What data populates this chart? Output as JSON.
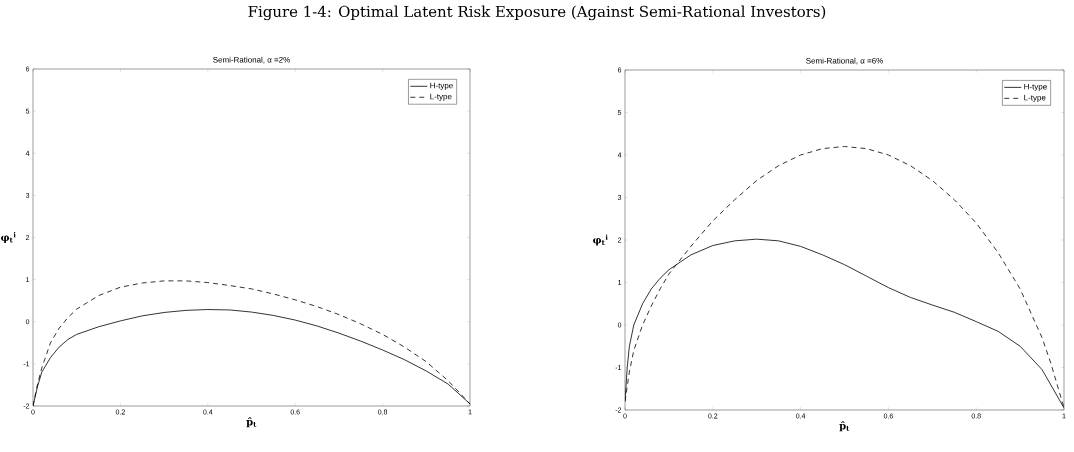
{
  "chart_data": [
    {
      "type": "line",
      "title": "Semi-Rational,  α =2%",
      "xlabel": "p̂$_{t}$",
      "ylabel": "φ$_{t}$$^{i}$",
      "annotations": [
        "Figure 1-4: Optimal Latent Risk Exposure (Against Semi-Rational Investors)"
      ],
      "xlim": [
        0,
        1
      ],
      "ylim": [
        -2,
        6
      ],
      "xticks": [
        0,
        0.2,
        0.4,
        0.6,
        0.8,
        1
      ],
      "yticks": [
        -2,
        -1,
        0,
        1,
        2,
        3,
        4,
        5,
        6
      ],
      "legend": "top right",
      "grid": false,
      "series": [
        {
          "name": "H-type",
          "color": "#000000",
          "line_style": "solid",
          "x": [
            0,
            0.01,
            0.02,
            0.04,
            0.06,
            0.08,
            0.1,
            0.15,
            0.2,
            0.25,
            0.3,
            0.35,
            0.4,
            0.45,
            0.5,
            0.55,
            0.6,
            0.65,
            0.7,
            0.75,
            0.8,
            0.85,
            0.9,
            0.95,
            1
          ],
          "values": [
            -2,
            -1.55,
            -1.2,
            -0.85,
            -0.6,
            -0.42,
            -0.3,
            -0.12,
            0.02,
            0.14,
            0.22,
            0.27,
            0.29,
            0.28,
            0.23,
            0.15,
            0.04,
            -0.1,
            -0.27,
            -0.46,
            -0.67,
            -0.9,
            -1.17,
            -1.48,
            -1.95
          ]
        },
        {
          "name": "L-type",
          "color": "#000000",
          "line_style": "dashed",
          "x": [
            0,
            0.01,
            0.02,
            0.04,
            0.06,
            0.08,
            0.1,
            0.15,
            0.2,
            0.25,
            0.3,
            0.35,
            0.4,
            0.45,
            0.5,
            0.55,
            0.6,
            0.65,
            0.7,
            0.75,
            0.8,
            0.85,
            0.9,
            0.95,
            1
          ],
          "values": [
            -2,
            -1.5,
            -1.1,
            -0.5,
            -0.15,
            0.1,
            0.3,
            0.62,
            0.82,
            0.92,
            0.97,
            0.97,
            0.93,
            0.86,
            0.78,
            0.66,
            0.52,
            0.36,
            0.17,
            -0.05,
            -0.3,
            -0.6,
            -0.95,
            -1.4,
            -1.95
          ]
        }
      ]
    },
    {
      "type": "line",
      "title": "Semi-Rational,  α =6%",
      "xlabel": "p̂$_{t}$",
      "ylabel": "φ$_{t}$$^{i}$",
      "xlim": [
        0,
        1
      ],
      "ylim": [
        -2,
        6
      ],
      "xticks": [
        0,
        0.2,
        0.4,
        0.6,
        0.8,
        1
      ],
      "yticks": [
        -2,
        -1,
        0,
        1,
        2,
        3,
        4,
        5,
        6
      ],
      "legend": "top right",
      "grid": false,
      "series": [
        {
          "name": "H-type",
          "color": "#000000",
          "line_style": "solid",
          "x": [
            0,
            0.005,
            0.01,
            0.02,
            0.04,
            0.06,
            0.08,
            0.1,
            0.15,
            0.2,
            0.25,
            0.3,
            0.35,
            0.4,
            0.45,
            0.5,
            0.55,
            0.6,
            0.65,
            0.7,
            0.75,
            0.8,
            0.85,
            0.9,
            0.95,
            1
          ],
          "values": [
            -1.8,
            -1.0,
            -0.5,
            0.0,
            0.5,
            0.85,
            1.1,
            1.3,
            1.65,
            1.87,
            1.98,
            2.02,
            1.98,
            1.85,
            1.65,
            1.42,
            1.15,
            0.88,
            0.65,
            0.47,
            0.3,
            0.08,
            -0.15,
            -0.5,
            -1.05,
            -1.95
          ]
        },
        {
          "name": "L-type",
          "color": "#000000",
          "line_style": "dashed",
          "x": [
            0,
            0.01,
            0.02,
            0.04,
            0.06,
            0.08,
            0.1,
            0.15,
            0.2,
            0.25,
            0.3,
            0.35,
            0.4,
            0.45,
            0.5,
            0.55,
            0.6,
            0.65,
            0.7,
            0.75,
            0.8,
            0.85,
            0.9,
            0.95,
            0.97,
            0.99,
            1
          ],
          "values": [
            -1.8,
            -1.1,
            -0.6,
            0.0,
            0.45,
            0.85,
            1.2,
            1.85,
            2.45,
            2.95,
            3.4,
            3.75,
            4.0,
            4.15,
            4.2,
            4.15,
            4.0,
            3.75,
            3.4,
            2.95,
            2.4,
            1.7,
            0.85,
            -0.3,
            -0.9,
            -1.6,
            -1.95
          ]
        }
      ]
    }
  ]
}
